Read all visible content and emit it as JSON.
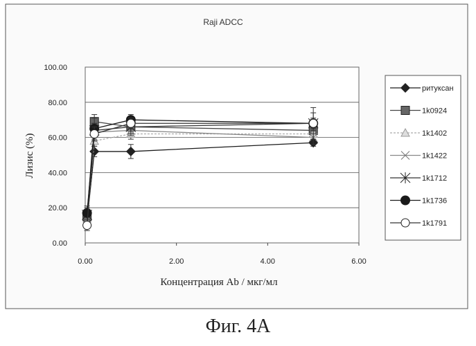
{
  "chart_data": {
    "type": "line",
    "title": "Raji ADCC",
    "xlabel": "Концентрация Ab / мкг/мл",
    "ylabel": "Лизис (%)",
    "xlim": [
      0,
      6
    ],
    "ylim": [
      0,
      100
    ],
    "xticks": [
      "0.00",
      "2.00",
      "4.00",
      "6.00"
    ],
    "yticks": [
      "0.00",
      "20.00",
      "40.00",
      "60.00",
      "80.00",
      "100.00"
    ],
    "grid": "horizontal",
    "legend_position": "right",
    "x": [
      0.04,
      0.2,
      1.0,
      5.0
    ],
    "series": [
      {
        "name": "ритуксан",
        "marker": "diamond",
        "values": [
          13,
          52,
          52,
          57
        ],
        "errors": [
          4,
          3,
          4,
          2
        ]
      },
      {
        "name": "1k0924",
        "marker": "square",
        "values": [
          15,
          69,
          66,
          64
        ],
        "errors": [
          4,
          4,
          3,
          3
        ]
      },
      {
        "name": "1k1402",
        "marker": "triangle",
        "values": [
          12,
          58,
          62,
          62
        ],
        "errors": [
          3,
          3,
          3,
          3
        ]
      },
      {
        "name": "1k1422",
        "marker": "x",
        "values": [
          14,
          63,
          64,
          60
        ],
        "errors": [
          5,
          5,
          3,
          4
        ]
      },
      {
        "name": "1k1712",
        "marker": "star",
        "values": [
          16,
          64,
          66,
          68
        ],
        "errors": [
          4,
          4,
          4,
          9
        ]
      },
      {
        "name": "1k1736",
        "marker": "filled-circle",
        "values": [
          17,
          65,
          70,
          68
        ],
        "errors": [
          4,
          6,
          3,
          6
        ]
      },
      {
        "name": "1k1791",
        "marker": "open-circle",
        "values": [
          10,
          62,
          68,
          68
        ],
        "errors": [
          3,
          4,
          3,
          3
        ]
      }
    ]
  },
  "figure_caption": "Фиг. 4A"
}
